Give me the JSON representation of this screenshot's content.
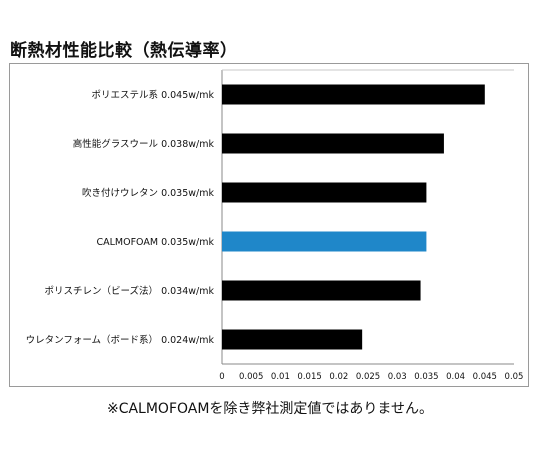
{
  "title": "断熱材性能比較（熱伝導率）",
  "footnote": "※CALMOFOAMを除き弊社測定値ではありません。",
  "chart_data": {
    "type": "bar",
    "orientation": "horizontal",
    "title": "断熱材性能比較（熱伝導率）",
    "xlabel": "",
    "ylabel": "",
    "xlim": [
      0,
      0.05
    ],
    "grid": false,
    "x_ticks": [
      "0",
      "0.005",
      "0.01",
      "0.015",
      "0.02",
      "0.025",
      "0.03",
      "0.035",
      "0.04",
      "0.045",
      "0.05"
    ],
    "categories": [
      "ポリエステル系 0.045w/mk",
      "高性能グラスウール 0.038w/mk",
      "吹き付けウレタン 0.035w/mk",
      "CALMOFOAM 0.035w/mk",
      "ポリスチレン（ビーズ法） 0.034w/mk",
      "ウレタンフォーム（ボード系） 0.024w/mk"
    ],
    "values": [
      0.045,
      0.038,
      0.035,
      0.035,
      0.034,
      0.024
    ],
    "bar_colors": [
      "#000000",
      "#000000",
      "#000000",
      "#1f87c9",
      "#000000",
      "#000000"
    ]
  }
}
